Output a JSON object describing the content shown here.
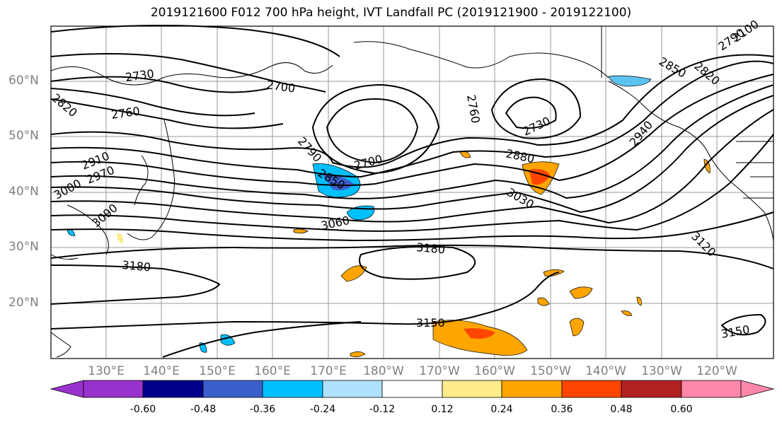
{
  "title": "2019121600 F012 700 hPa height, IVT Landfall PC (2019121900 - 2019122100)",
  "lat_labels": [
    "60°N",
    "50°N",
    "40°N",
    "30°N",
    "20°N"
  ],
  "lon_labels": [
    "130°E",
    "140°E",
    "150°E",
    "160°E",
    "170°E",
    "180°W",
    "170°W",
    "160°W",
    "150°W",
    "140°W",
    "130°W",
    "120°W"
  ],
  "contour_labels": [
    "2730",
    "2700",
    "2760",
    "2820",
    "2790",
    "2850",
    "2700",
    "2760",
    "2730",
    "2880",
    "3030",
    "2910",
    "2970",
    "3000",
    "3090",
    "3060",
    "3180",
    "3180",
    "3150",
    "3120",
    "2940",
    "2850",
    "2820",
    "2790",
    "2100",
    "3150"
  ],
  "colorbar": {
    "ticks": [
      "-0.60",
      "-0.48",
      "-0.36",
      "-0.24",
      "-0.12",
      "0.12",
      "0.24",
      "0.36",
      "0.48",
      "0.60"
    ],
    "colors": [
      "#9932cc",
      "#00008b",
      "#3a5fcd",
      "#00bfff",
      "#b0e2ff",
      "#ffffff",
      "#ffec8b",
      "#ffa500",
      "#ff4500",
      "#b22222",
      "#ff88aa"
    ]
  }
}
